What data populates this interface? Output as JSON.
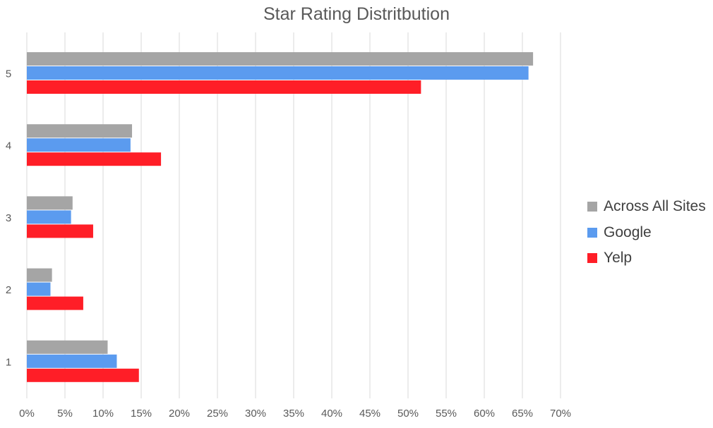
{
  "chart_data": {
    "type": "bar",
    "orientation": "horizontal",
    "title": "Star Rating Distritbution",
    "categories": [
      "5",
      "4",
      "3",
      "2",
      "1"
    ],
    "series": [
      {
        "name": "Across All Sites",
        "color": "#a5a5a5",
        "values": [
          66.4,
          13.8,
          6.0,
          3.3,
          10.6
        ]
      },
      {
        "name": "Google",
        "color": "#5b9bef",
        "values": [
          65.8,
          13.6,
          5.8,
          3.1,
          11.8
        ]
      },
      {
        "name": "Yelp",
        "color": "#ff1e27",
        "values": [
          51.7,
          17.6,
          8.7,
          7.4,
          14.7
        ]
      }
    ],
    "x_ticks": [
      "0%",
      "5%",
      "10%",
      "15%",
      "20%",
      "25%",
      "30%",
      "35%",
      "40%",
      "45%",
      "50%",
      "55%",
      "60%",
      "65%",
      "70%"
    ],
    "xlim": [
      0,
      70
    ],
    "grid": "vertical",
    "legend_position": "right"
  }
}
